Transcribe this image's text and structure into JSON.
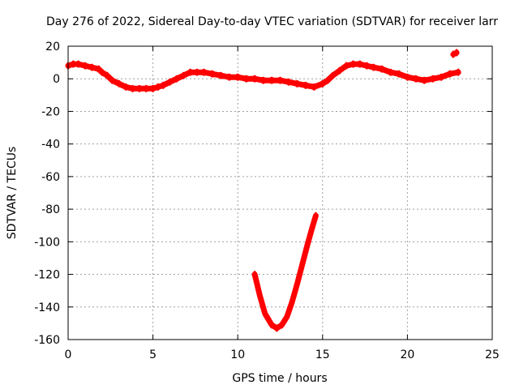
{
  "chart_data": {
    "type": "line",
    "title": "Day 276 of 2022, Sidereal Day-to-day VTEC variation (SDTVAR) for receiver larr",
    "xlabel": "GPS time / hours",
    "ylabel": "SDTVAR / TECUs",
    "xlim": [
      0,
      25
    ],
    "ylim": [
      -160,
      20
    ],
    "xticks": [
      0,
      5,
      10,
      15,
      20,
      25
    ],
    "yticks": [
      -160,
      -140,
      -120,
      -100,
      -80,
      -60,
      -40,
      -20,
      0,
      20
    ],
    "grid": true,
    "series_color": "#ff0000",
    "series": [
      {
        "name": "main trace",
        "x": [
          0.0,
          0.3,
          0.6,
          1.0,
          1.4,
          1.8,
          2.0,
          2.3,
          2.6,
          3.0,
          3.4,
          3.8,
          4.2,
          4.6,
          5.0,
          5.3,
          5.6,
          6.0,
          6.4,
          6.8,
          7.2,
          7.6,
          8.0,
          8.5,
          9.0,
          9.5,
          10.0,
          10.5,
          11.0,
          11.5,
          12.0,
          12.5,
          13.0,
          13.5,
          14.0,
          14.5,
          15.0,
          15.3,
          15.6,
          16.0,
          16.4,
          16.8,
          17.2,
          17.6,
          18.0,
          18.5,
          19.0,
          19.5,
          20.0,
          20.5,
          21.0,
          21.5,
          22.0,
          22.5,
          23.0
        ],
        "y": [
          8,
          9,
          9,
          8,
          7,
          6,
          4,
          2,
          -1,
          -3,
          -5,
          -6,
          -6,
          -6,
          -6,
          -5,
          -4,
          -2,
          0,
          2,
          4,
          4,
          4,
          3,
          2,
          1,
          1,
          0,
          0,
          -1,
          -1,
          -1,
          -2,
          -3,
          -4,
          -5,
          -3,
          -1,
          2,
          5,
          8,
          9,
          9,
          8,
          7,
          6,
          4,
          3,
          1,
          0,
          -1,
          0,
          1,
          3,
          4
        ]
      },
      {
        "name": "dip trace",
        "x": [
          11.0,
          11.3,
          11.6,
          12.0,
          12.3,
          12.6,
          12.9,
          13.2,
          13.5,
          13.8,
          14.1,
          14.4,
          14.6
        ],
        "y": [
          -120,
          -133,
          -144,
          -151,
          -153,
          -151,
          -146,
          -137,
          -126,
          -114,
          -102,
          -91,
          -84
        ]
      },
      {
        "name": "end segment",
        "x": [
          22.7,
          22.9
        ],
        "y": [
          15,
          16
        ]
      }
    ]
  }
}
